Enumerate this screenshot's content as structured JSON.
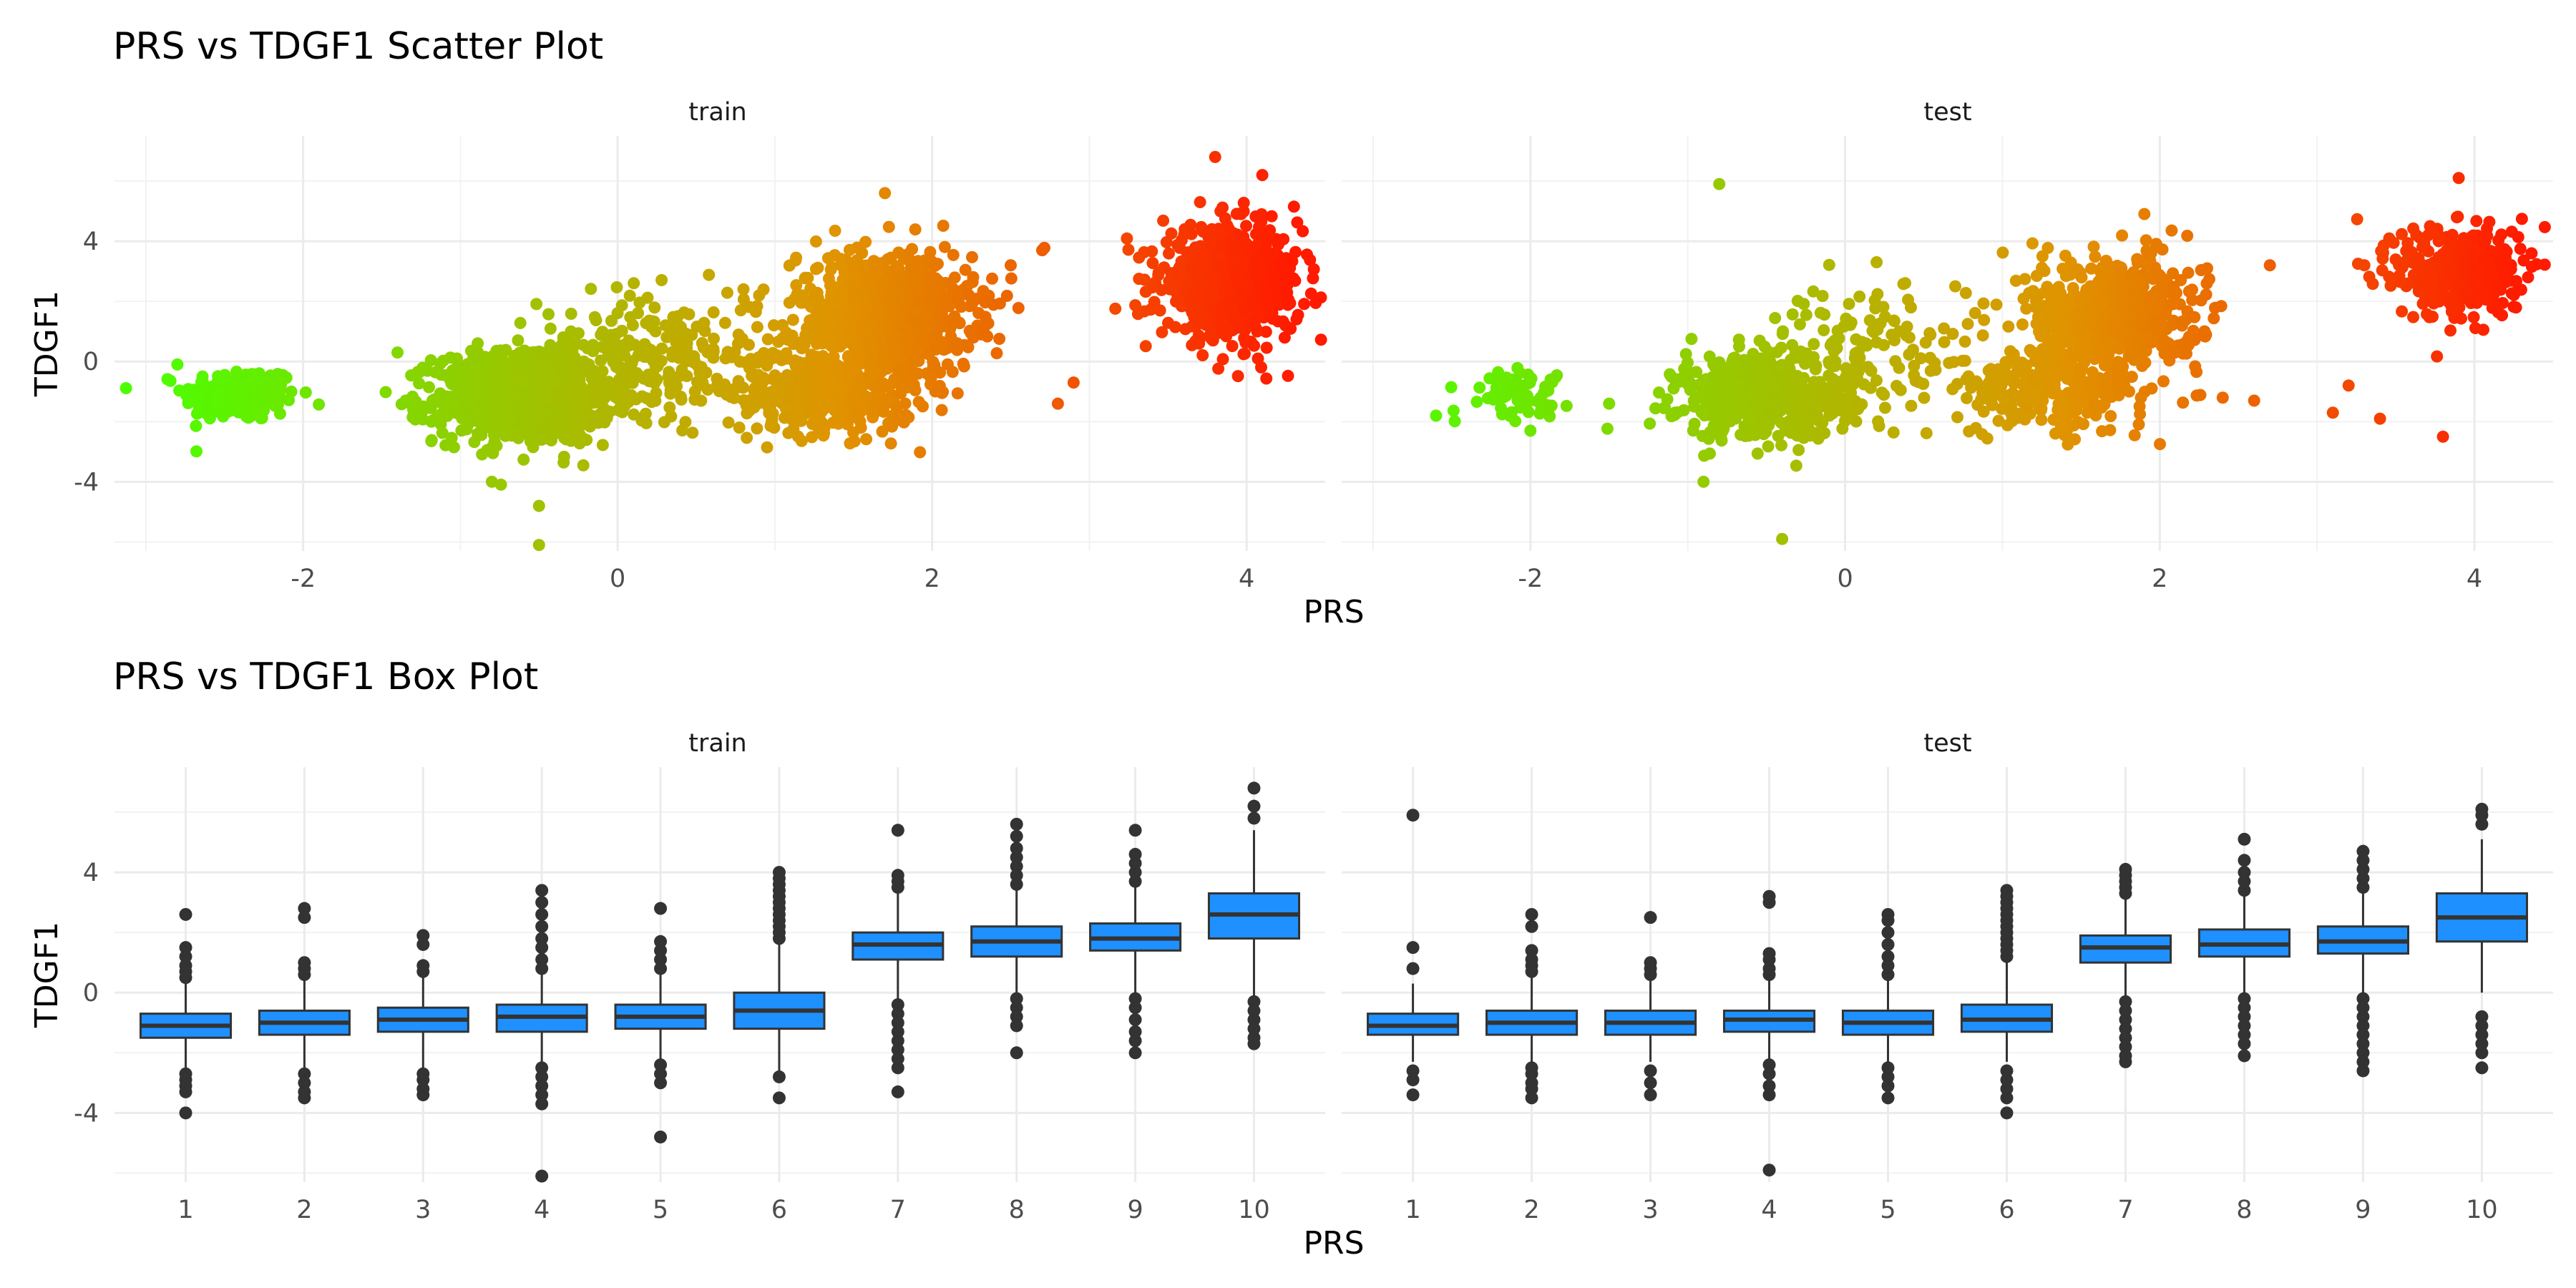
{
  "chart_data": [
    {
      "type": "scatter",
      "title": "PRS vs TDGF1 Scatter Plot",
      "xlabel": "PRS",
      "ylabel": "TDGF1",
      "xlim": [
        -3.2,
        4.5
      ],
      "ylim": [
        -6.3,
        7.5
      ],
      "xticks": [
        -2,
        0,
        2,
        4
      ],
      "yticks": [
        -4,
        0,
        4
      ],
      "color_scale": {
        "low": "#4cff00",
        "mid": "#e09400",
        "high": "#ff1a00",
        "domain": [
          -3,
          4.3
        ]
      },
      "grid": true,
      "legend": "none",
      "facets": [
        {
          "label": "train",
          "clusters": [
            {
              "x_center": -2.4,
              "y_center": -1.1,
              "x_sd": 0.18,
              "y_sd": 0.45,
              "n": 220
            },
            {
              "x_center": -0.6,
              "y_center": -1.2,
              "x_sd": 0.28,
              "y_sd": 0.75,
              "n": 900
            },
            {
              "x_center": 0.2,
              "y_center": 0.3,
              "x_sd": 0.35,
              "y_sd": 1.0,
              "n": 250
            },
            {
              "x_center": 1.3,
              "y_center": -1.0,
              "x_sd": 0.3,
              "y_sd": 0.7,
              "n": 400
            },
            {
              "x_center": 1.7,
              "y_center": 1.6,
              "x_sd": 0.28,
              "y_sd": 1.0,
              "n": 900
            },
            {
              "x_center": 3.9,
              "y_center": 2.6,
              "x_sd": 0.22,
              "y_sd": 0.9,
              "n": 700
            }
          ],
          "outliers": [
            {
              "x": -0.5,
              "y": -6.1
            },
            {
              "x": -0.5,
              "y": -4.8
            },
            {
              "x": -0.8,
              "y": -4.0
            },
            {
              "x": 3.8,
              "y": 6.8
            },
            {
              "x": 4.1,
              "y": 6.2
            },
            {
              "x": 1.7,
              "y": 5.6
            },
            {
              "x": 2.7,
              "y": 3.7
            },
            {
              "x": 2.8,
              "y": -1.4
            },
            {
              "x": 2.9,
              "y": -0.7
            },
            {
              "x": -2.8,
              "y": -0.1
            },
            {
              "x": 0.9,
              "y": 2.2
            },
            {
              "x": 0.8,
              "y": 2.4
            },
            {
              "x": 2.5,
              "y": 3.2
            },
            {
              "x": -1.3,
              "y": -1.6
            },
            {
              "x": -1.4,
              "y": 0.3
            }
          ]
        },
        {
          "label": "test",
          "clusters": [
            {
              "x_center": -2.1,
              "y_center": -1.0,
              "x_sd": 0.16,
              "y_sd": 0.4,
              "n": 60
            },
            {
              "x_center": -0.5,
              "y_center": -1.2,
              "x_sd": 0.28,
              "y_sd": 0.7,
              "n": 500
            },
            {
              "x_center": 0.1,
              "y_center": 0.5,
              "x_sd": 0.35,
              "y_sd": 1.0,
              "n": 120
            },
            {
              "x_center": 1.3,
              "y_center": -1.0,
              "x_sd": 0.3,
              "y_sd": 0.7,
              "n": 250
            },
            {
              "x_center": 1.7,
              "y_center": 1.6,
              "x_sd": 0.28,
              "y_sd": 1.0,
              "n": 550
            },
            {
              "x_center": 3.9,
              "y_center": 3.0,
              "x_sd": 0.2,
              "y_sd": 0.8,
              "n": 350
            }
          ],
          "outliers": [
            {
              "x": -0.8,
              "y": 5.9
            },
            {
              "x": -0.4,
              "y": -5.9
            },
            {
              "x": 3.8,
              "y": -2.5
            },
            {
              "x": 3.9,
              "y": 6.1
            },
            {
              "x": 2.7,
              "y": 3.2
            },
            {
              "x": 3.3,
              "y": 3.2
            },
            {
              "x": -2.6,
              "y": -1.8
            },
            {
              "x": -2.0,
              "y": -2.3
            },
            {
              "x": -1.5,
              "y": -1.4
            },
            {
              "x": 3.1,
              "y": -1.7
            },
            {
              "x": 3.2,
              "y": -0.8
            },
            {
              "x": 3.4,
              "y": -1.9
            },
            {
              "x": 0.2,
              "y": 3.3
            },
            {
              "x": 0.7,
              "y": 2.5
            },
            {
              "x": 2.4,
              "y": -1.2
            },
            {
              "x": 2.6,
              "y": -1.3
            },
            {
              "x": -0.9,
              "y": -4.0
            }
          ]
        }
      ]
    },
    {
      "type": "box",
      "title": "PRS vs TDGF1 Box Plot",
      "xlabel": "PRS",
      "ylabel": "TDGF1",
      "categories": [
        "1",
        "2",
        "3",
        "4",
        "5",
        "6",
        "7",
        "8",
        "9",
        "10"
      ],
      "ylim": [
        -6.3,
        7.5
      ],
      "yticks": [
        -4,
        0,
        4
      ],
      "box_fill": "#1e90ff",
      "grid": true,
      "legend": "none",
      "facets": [
        {
          "label": "train",
          "boxes": [
            {
              "q1": -1.5,
              "median": -1.1,
              "q3": -0.7,
              "whisker_low": -2.5,
              "whisker_high": 0.3,
              "outliers": [
                -2.7,
                -2.9,
                -3.1,
                -3.3,
                -4.0,
                0.5,
                0.7,
                0.9,
                1.2,
                1.5,
                2.6
              ]
            },
            {
              "q1": -1.4,
              "median": -1.0,
              "q3": -0.6,
              "whisker_low": -2.5,
              "whisker_high": 0.4,
              "outliers": [
                -2.7,
                -3.0,
                -3.3,
                -3.5,
                0.6,
                0.8,
                1.0,
                2.5,
                2.8
              ]
            },
            {
              "q1": -1.3,
              "median": -0.9,
              "q3": -0.5,
              "whisker_low": -2.5,
              "whisker_high": 0.5,
              "outliers": [
                -2.7,
                -2.9,
                -3.2,
                -3.4,
                0.7,
                0.9,
                1.6,
                1.9
              ]
            },
            {
              "q1": -1.3,
              "median": -0.8,
              "q3": -0.4,
              "whisker_low": -2.3,
              "whisker_high": 0.6,
              "outliers": [
                -2.5,
                -2.8,
                -3.1,
                -3.4,
                -3.7,
                -6.1,
                0.8,
                1.1,
                1.5,
                1.8,
                2.2,
                2.6,
                3.0,
                3.4
              ]
            },
            {
              "q1": -1.2,
              "median": -0.8,
              "q3": -0.4,
              "whisker_low": -2.2,
              "whisker_high": 0.6,
              "outliers": [
                -2.4,
                -2.7,
                -3.0,
                -4.8,
                0.8,
                1.1,
                1.4,
                1.7,
                2.8
              ]
            },
            {
              "q1": -1.2,
              "median": -0.6,
              "q3": 0.0,
              "whisker_low": -2.6,
              "whisker_high": 1.6,
              "outliers": [
                -2.8,
                -3.5,
                1.8,
                2.0,
                2.2,
                2.4,
                2.6,
                2.8,
                3.0,
                3.2,
                3.4,
                3.6,
                3.8,
                4.0
              ]
            },
            {
              "q1": 1.1,
              "median": 1.6,
              "q3": 2.0,
              "whisker_low": -0.2,
              "whisker_high": 3.3,
              "outliers": [
                -0.4,
                -0.7,
                -1.0,
                -1.3,
                -1.6,
                -1.9,
                -2.2,
                -2.5,
                -3.3,
                3.5,
                3.7,
                3.9,
                5.4
              ]
            },
            {
              "q1": 1.2,
              "median": 1.7,
              "q3": 2.2,
              "whisker_low": 0.0,
              "whisker_high": 3.4,
              "outliers": [
                -0.2,
                -0.5,
                -0.8,
                -1.1,
                -2.0,
                3.6,
                3.9,
                4.2,
                4.5,
                4.8,
                5.2,
                5.6
              ]
            },
            {
              "q1": 1.4,
              "median": 1.8,
              "q3": 2.3,
              "whisker_low": 0.0,
              "whisker_high": 3.5,
              "outliers": [
                -0.2,
                -0.5,
                -0.9,
                -1.3,
                -1.6,
                -2.0,
                3.7,
                4.0,
                4.3,
                4.6,
                5.4
              ]
            },
            {
              "q1": 1.8,
              "median": 2.6,
              "q3": 3.3,
              "whisker_low": -0.1,
              "whisker_high": 5.4,
              "outliers": [
                -0.3,
                -0.6,
                -0.9,
                -1.2,
                -1.5,
                -1.7,
                5.8,
                6.2,
                6.8
              ]
            }
          ]
        },
        {
          "label": "test",
          "boxes": [
            {
              "q1": -1.4,
              "median": -1.1,
              "q3": -0.7,
              "whisker_low": -2.3,
              "whisker_high": 0.3,
              "outliers": [
                -2.6,
                -2.9,
                -3.4,
                0.8,
                1.5,
                5.9
              ]
            },
            {
              "q1": -1.4,
              "median": -1.0,
              "q3": -0.6,
              "whisker_low": -2.3,
              "whisker_high": 0.5,
              "outliers": [
                -2.5,
                -2.7,
                -3.0,
                -3.2,
                -3.5,
                0.7,
                0.9,
                1.1,
                1.4,
                2.2,
                2.6
              ]
            },
            {
              "q1": -1.4,
              "median": -1.0,
              "q3": -0.6,
              "whisker_low": -2.3,
              "whisker_high": 0.4,
              "outliers": [
                -2.6,
                -3.0,
                -3.4,
                0.6,
                0.8,
                1.0,
                2.5
              ]
            },
            {
              "q1": -1.3,
              "median": -0.9,
              "q3": -0.6,
              "whisker_low": -2.2,
              "whisker_high": 0.4,
              "outliers": [
                -2.4,
                -2.7,
                -3.1,
                -3.4,
                -5.9,
                0.6,
                0.8,
                1.1,
                1.3,
                3.0,
                3.2
              ]
            },
            {
              "q1": -1.4,
              "median": -1.0,
              "q3": -0.6,
              "whisker_low": -2.3,
              "whisker_high": 0.4,
              "outliers": [
                -2.5,
                -2.8,
                -3.1,
                -3.5,
                0.6,
                0.9,
                1.2,
                1.6,
                2.0,
                2.4,
                2.6
              ]
            },
            {
              "q1": -1.3,
              "median": -0.9,
              "q3": -0.4,
              "whisker_low": -2.3,
              "whisker_high": 1.0,
              "outliers": [
                -2.6,
                -2.9,
                -3.2,
                -3.5,
                -4.0,
                1.2,
                1.4,
                1.6,
                1.8,
                2.0,
                2.2,
                2.4,
                2.6,
                2.8,
                3.0,
                3.2,
                3.4
              ]
            },
            {
              "q1": 1.0,
              "median": 1.5,
              "q3": 1.9,
              "whisker_low": -0.1,
              "whisker_high": 3.1,
              "outliers": [
                -0.3,
                -0.6,
                -0.9,
                -1.2,
                -1.5,
                -1.8,
                -2.1,
                -2.3,
                3.3,
                3.5,
                3.7,
                3.9,
                4.1
              ]
            },
            {
              "q1": 1.2,
              "median": 1.6,
              "q3": 2.1,
              "whisker_low": 0.0,
              "whisker_high": 3.2,
              "outliers": [
                -0.2,
                -0.5,
                -0.8,
                -1.1,
                -1.4,
                -1.7,
                -2.1,
                3.4,
                3.7,
                4.0,
                4.4,
                5.1
              ]
            },
            {
              "q1": 1.3,
              "median": 1.7,
              "q3": 2.2,
              "whisker_low": 0.0,
              "whisker_high": 3.3,
              "outliers": [
                -0.2,
                -0.5,
                -0.8,
                -1.1,
                -1.4,
                -1.7,
                -2.0,
                -2.3,
                -2.6,
                3.5,
                3.8,
                4.1,
                4.4,
                4.7
              ]
            },
            {
              "q1": 1.7,
              "median": 2.5,
              "q3": 3.3,
              "whisker_low": 0.0,
              "whisker_high": 5.1,
              "outliers": [
                -0.8,
                -1.1,
                -1.4,
                -1.7,
                -2.0,
                -2.5,
                5.6,
                5.9,
                6.1
              ]
            }
          ]
        }
      ]
    }
  ]
}
